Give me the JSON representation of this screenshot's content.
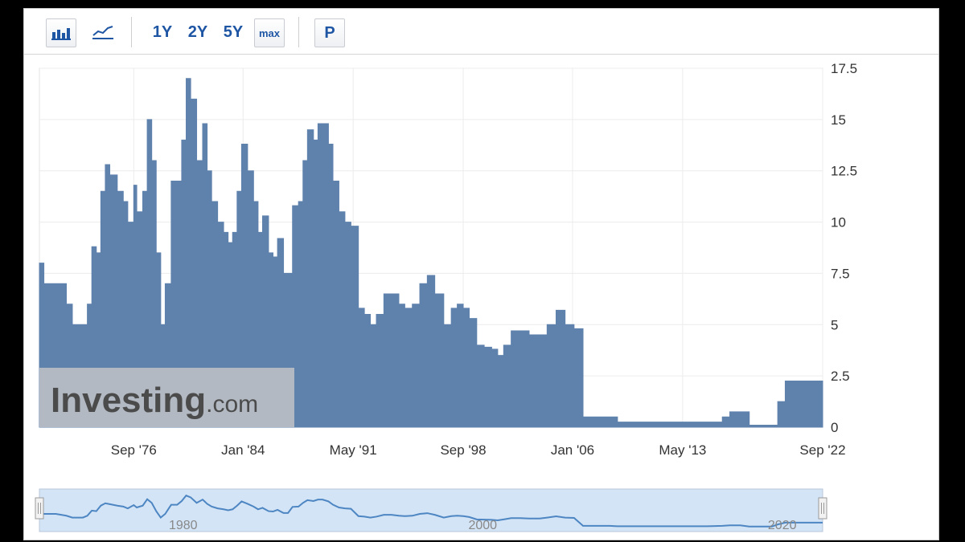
{
  "toolbar": {
    "range_buttons": [
      "1Y",
      "2Y",
      "5Y",
      "max"
    ],
    "p_button": "P",
    "icons": [
      "bar-chart-icon",
      "line-chart-icon"
    ]
  },
  "watermark": {
    "brand": "Investing",
    "suffix": ".com"
  },
  "navigator": {
    "labels": [
      "1980",
      "2000",
      "2020"
    ]
  },
  "colors": {
    "area": "#5f82ad",
    "navigator_line": "#4d86c2",
    "navigator_fill": "#d3e4f6",
    "accent": "#1f56a4"
  },
  "chart_data": {
    "type": "area",
    "ylim": [
      0,
      17.5
    ],
    "y_ticks": [
      "0",
      "2.5",
      "5",
      "7.5",
      "10",
      "12.5",
      "15",
      "17.5"
    ],
    "x_ticks": [
      "Sep '76",
      "Jan '84",
      "May '91",
      "Sep '98",
      "Jan '06",
      "May '13",
      "Sep '22"
    ],
    "x_range": [
      1970.4,
      2022.7
    ],
    "grid": true,
    "series": [
      {
        "x": [
          1970.4,
          1970.7,
          1971.5,
          1972.2,
          1972.6,
          1973.3,
          1973.6,
          1973.9,
          1974.2,
          1974.5,
          1974.8,
          1975.1,
          1975.6,
          1976.0,
          1976.3,
          1976.7,
          1976.9,
          1977.3,
          1977.6,
          1977.9,
          1978.2,
          1978.5,
          1978.8,
          1979.2,
          1979.6,
          1979.9,
          1980.2,
          1980.5,
          1980.9,
          1981.3,
          1981.6,
          1981.9,
          1982.3,
          1982.7,
          1983.0,
          1983.3,
          1983.6,
          1983.9,
          1984.3,
          1984.7,
          1985.0,
          1985.3,
          1985.7,
          1986.0,
          1986.3,
          1986.7,
          1987.0,
          1987.3,
          1987.7,
          1988.0,
          1988.3,
          1988.7,
          1989.0,
          1989.3,
          1989.7,
          1990.0,
          1990.4,
          1990.8,
          1991.2,
          1991.7,
          1992.1,
          1992.5,
          1992.9,
          1993.4,
          1993.9,
          1994.4,
          1994.8,
          1995.3,
          1995.8,
          1996.3,
          1996.8,
          1997.4,
          1997.9,
          1998.3,
          1998.7,
          1999.1,
          1999.6,
          2000.1,
          2000.6,
          2001.0,
          2001.4,
          2001.9,
          2002.5,
          2003.1,
          2003.8,
          2004.3,
          2004.9,
          2005.5,
          2006.1,
          2006.7,
          2007.2,
          2007.7,
          2008.1,
          2008.5,
          2009.0,
          2012.0,
          2015.0,
          2016.0,
          2016.5,
          2017.2,
          2017.8,
          2018.5,
          2019.3,
          2019.7,
          2020.2,
          2020.8,
          2021.5,
          2021.9,
          2022.2,
          2022.5,
          2022.7
        ],
        "y": [
          8.0,
          7.0,
          7.0,
          6.0,
          5.0,
          5.0,
          6.0,
          8.8,
          8.5,
          11.5,
          12.8,
          12.3,
          11.5,
          11.0,
          10.0,
          11.8,
          10.5,
          11.5,
          15.0,
          13.0,
          8.5,
          5.0,
          7.0,
          12.0,
          12.0,
          14.0,
          17.0,
          16.0,
          13.0,
          14.8,
          12.5,
          11.0,
          10.0,
          9.5,
          9.0,
          9.5,
          11.5,
          13.8,
          12.5,
          11.0,
          9.5,
          10.3,
          8.5,
          8.3,
          9.2,
          7.5,
          7.5,
          10.8,
          11.0,
          13.0,
          14.5,
          14.0,
          14.8,
          14.8,
          13.8,
          12.0,
          10.5,
          10.0,
          9.8,
          5.8,
          5.5,
          5.0,
          5.5,
          6.5,
          6.5,
          6.0,
          5.8,
          6.0,
          7.0,
          7.4,
          6.5,
          5.0,
          5.8,
          6.0,
          5.8,
          5.3,
          4.0,
          3.9,
          3.8,
          3.5,
          4.0,
          4.7,
          4.7,
          4.5,
          4.5,
          5.0,
          5.7,
          5.0,
          4.8,
          0.5,
          0.5,
          0.5,
          0.5,
          0.5,
          0.25,
          0.25,
          0.25,
          0.5,
          0.75,
          0.75,
          0.1,
          0.1,
          0.1,
          1.25,
          2.25,
          2.25,
          2.25,
          2.25,
          2.25,
          2.25,
          2.25
        ]
      }
    ]
  }
}
